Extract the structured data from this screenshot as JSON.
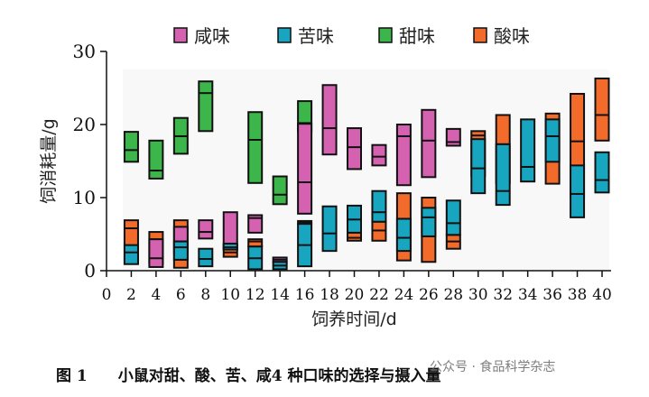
{
  "chart_data": {
    "type": "floating-bar",
    "xlabel": "饲养时间/d",
    "ylabel": "饲消耗量/g",
    "xlim": [
      0,
      40
    ],
    "ylim": [
      0,
      30
    ],
    "xticks": [
      0,
      2,
      4,
      6,
      8,
      10,
      12,
      14,
      16,
      18,
      20,
      22,
      24,
      26,
      28,
      30,
      32,
      34,
      36,
      38,
      40
    ],
    "yticks": [
      0,
      10,
      20,
      30
    ],
    "legend_position": "top",
    "value_format": "[day, min, median, max]",
    "series": [
      {
        "name": "甜味",
        "color": "#3cb54a",
        "values": [
          [
            2,
            14.9,
            16.5,
            19.0
          ],
          [
            4,
            12.6,
            13.7,
            17.8
          ],
          [
            6,
            16.0,
            18.4,
            20.9
          ],
          [
            8,
            19.1,
            24.3,
            25.9
          ],
          [
            12,
            12.0,
            17.9,
            21.7
          ],
          [
            14,
            9.1,
            10.4,
            12.9
          ],
          [
            16,
            19.0,
            20.2,
            23.2
          ]
        ]
      },
      {
        "name": "酸味",
        "color": "#f26b2b",
        "values": [
          [
            2,
            1.0,
            5.8,
            6.9
          ],
          [
            4,
            1.0,
            4.3,
            5.3
          ],
          [
            6,
            0.4,
            1.5,
            6.9
          ],
          [
            10,
            1.9,
            2.5,
            3.5
          ],
          [
            12,
            3.3,
            4.0,
            4.3
          ],
          [
            16,
            6.4,
            6.6,
            6.8
          ],
          [
            20,
            4.1,
            4.5,
            5.2
          ],
          [
            22,
            4.1,
            5.5,
            6.7
          ],
          [
            24,
            1.4,
            5.0,
            10.6
          ],
          [
            26,
            1.2,
            4.7,
            10.0
          ],
          [
            28,
            3.0,
            4.0,
            4.9
          ],
          [
            30,
            13.0,
            18.5,
            19.1
          ],
          [
            32,
            12.0,
            17.3,
            21.3
          ],
          [
            36,
            11.9,
            15.0,
            21.5
          ],
          [
            38,
            10.0,
            17.7,
            24.2
          ],
          [
            40,
            17.8,
            21.3,
            26.3
          ]
        ]
      },
      {
        "name": "咸味",
        "color": "#d462b0",
        "values": [
          [
            4,
            0.5,
            1.7,
            4.3
          ],
          [
            6,
            2.5,
            4.0,
            6.0
          ],
          [
            8,
            4.4,
            5.3,
            6.9
          ],
          [
            10,
            2.9,
            3.5,
            8.0
          ],
          [
            12,
            5.2,
            7.2,
            7.6
          ],
          [
            14,
            1.2,
            1.5,
            1.8
          ],
          [
            16,
            7.8,
            12.1,
            20.1
          ],
          [
            18,
            15.9,
            19.5,
            25.4
          ],
          [
            20,
            13.9,
            16.9,
            19.5
          ],
          [
            22,
            14.4,
            15.6,
            17.2
          ],
          [
            24,
            11.7,
            18.4,
            20.0
          ],
          [
            26,
            12.8,
            17.8,
            22.0
          ],
          [
            28,
            17.1,
            17.6,
            19.4
          ]
        ]
      },
      {
        "name": "苦味",
        "color": "#17a5c0",
        "values": [
          [
            2,
            0.9,
            2.5,
            3.5
          ],
          [
            6,
            1.5,
            3.2,
            4.0
          ],
          [
            8,
            0.6,
            1.6,
            3.0
          ],
          [
            10,
            2.9,
            3.2,
            3.7
          ],
          [
            12,
            0.2,
            1.7,
            3.3
          ],
          [
            14,
            0.2,
            0.7,
            1.2
          ],
          [
            16,
            0.6,
            3.5,
            6.4
          ],
          [
            18,
            2.7,
            5.1,
            8.8
          ],
          [
            20,
            5.2,
            7.0,
            8.9
          ],
          [
            22,
            6.7,
            8.0,
            10.9
          ],
          [
            24,
            2.7,
            4.5,
            7.1
          ],
          [
            26,
            4.7,
            7.3,
            8.6
          ],
          [
            28,
            4.9,
            6.5,
            9.6
          ],
          [
            30,
            10.6,
            14.0,
            18.0
          ],
          [
            32,
            9.0,
            10.9,
            17.3
          ],
          [
            34,
            12.2,
            14.2,
            20.7
          ],
          [
            36,
            14.9,
            18.4,
            20.7
          ],
          [
            38,
            7.3,
            10.5,
            14.4
          ],
          [
            40,
            10.7,
            12.4,
            16.2
          ]
        ]
      }
    ],
    "legend_order": [
      "咸味",
      "苦味",
      "甜味",
      "酸味"
    ]
  },
  "caption": "图 1　　小鼠对甜、酸、苦、咸4 种口味的选择与摄入量",
  "watermark": "公众号 · 食品科学杂志"
}
